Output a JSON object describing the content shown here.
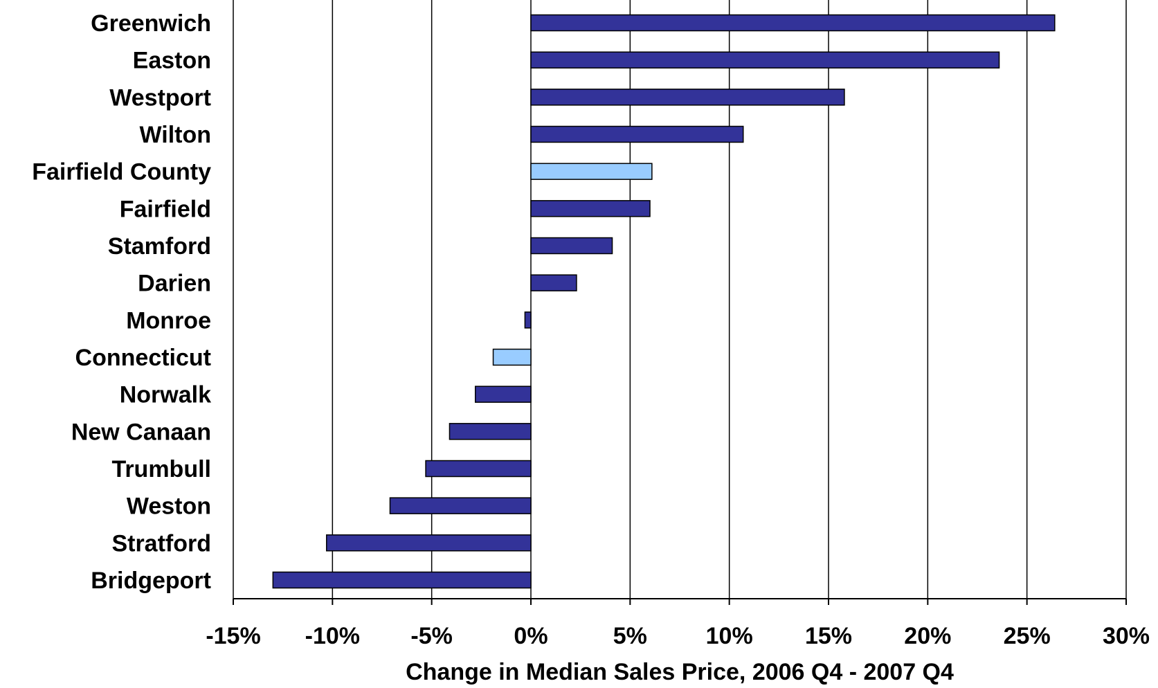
{
  "colors": {
    "primary_bar": "#333399",
    "highlight_bar": "#99ccff",
    "bar_stroke": "#000000",
    "grid": "#000000",
    "background": "#ffffff"
  },
  "chart_data": {
    "type": "bar",
    "orientation": "horizontal",
    "xlabel": "Change in Median Sales Price, 2006 Q4 - 2007 Q4",
    "ylabel": "",
    "xlim": [
      -15,
      30
    ],
    "x_ticks": [
      -15,
      -10,
      -5,
      0,
      5,
      10,
      15,
      20,
      25,
      30
    ],
    "x_tick_labels": [
      "-15%",
      "-10%",
      "-5%",
      "0%",
      "5%",
      "10%",
      "15%",
      "20%",
      "25%",
      "30%"
    ],
    "grid": "vertical",
    "legend": "none",
    "categories": [
      "Greenwich",
      "Easton",
      "Westport",
      "Wilton",
      "Fairfield County",
      "Fairfield",
      "Stamford",
      "Darien",
      "Monroe",
      "Connecticut",
      "Norwalk",
      "New Canaan",
      "Trumbull",
      "Weston",
      "Stratford",
      "Bridgeport"
    ],
    "values": [
      26.4,
      23.6,
      15.8,
      10.7,
      6.1,
      6.0,
      4.1,
      2.3,
      -0.3,
      -1.9,
      -2.8,
      -4.1,
      -5.3,
      -7.1,
      -10.3,
      -13.0
    ],
    "highlighted": [
      "Fairfield County",
      "Connecticut"
    ]
  }
}
